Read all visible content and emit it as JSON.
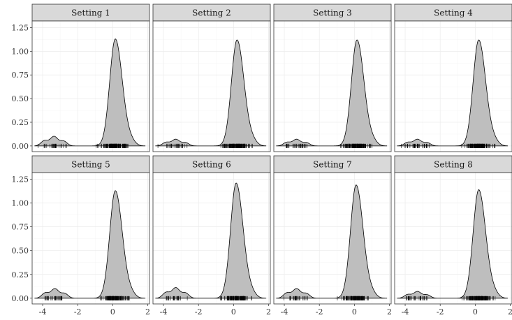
{
  "chart_data": {
    "type": "area",
    "facet_layout": {
      "rows": 2,
      "cols": 4
    },
    "xlim": [
      -4.6,
      2.1
    ],
    "ylim": [
      -0.06,
      1.32
    ],
    "x_ticks": [
      -4,
      -2,
      0,
      2
    ],
    "y_ticks": [
      0,
      0.25,
      0.5,
      0.75,
      1.0,
      1.25
    ],
    "x_tick_labels": [
      "-4",
      "-2",
      "0",
      "2"
    ],
    "y_tick_labels": [
      "0.00",
      "0.25",
      "0.50",
      "0.75",
      "1.00",
      "1.25"
    ],
    "grid": true,
    "xlabel": "",
    "ylabel": "",
    "fill_color": "#bebebe",
    "line_color": "#000000",
    "panels": [
      {
        "label": "Setting 1",
        "main_peak": {
          "x": 0.15,
          "height": 1.13
        },
        "minor_peak": {
          "x": -3.35,
          "height": 0.1
        }
      },
      {
        "label": "Setting 2",
        "main_peak": {
          "x": 0.2,
          "height": 1.12
        },
        "minor_peak": {
          "x": -3.3,
          "height": 0.07
        }
      },
      {
        "label": "Setting 3",
        "main_peak": {
          "x": 0.15,
          "height": 1.12
        },
        "minor_peak": {
          "x": -3.3,
          "height": 0.07
        }
      },
      {
        "label": "Setting 4",
        "main_peak": {
          "x": 0.2,
          "height": 1.12
        },
        "minor_peak": {
          "x": -3.3,
          "height": 0.07
        }
      },
      {
        "label": "Setting 5",
        "main_peak": {
          "x": 0.15,
          "height": 1.13
        },
        "minor_peak": {
          "x": -3.3,
          "height": 0.1
        }
      },
      {
        "label": "Setting 6",
        "main_peak": {
          "x": 0.15,
          "height": 1.21
        },
        "minor_peak": {
          "x": -3.3,
          "height": 0.11
        }
      },
      {
        "label": "Setting 7",
        "main_peak": {
          "x": 0.1,
          "height": 1.19
        },
        "minor_peak": {
          "x": -3.3,
          "height": 0.1
        }
      },
      {
        "label": "Setting 8",
        "main_peak": {
          "x": 0.2,
          "height": 1.14
        },
        "minor_peak": {
          "x": -3.3,
          "height": 0.07
        }
      }
    ]
  }
}
